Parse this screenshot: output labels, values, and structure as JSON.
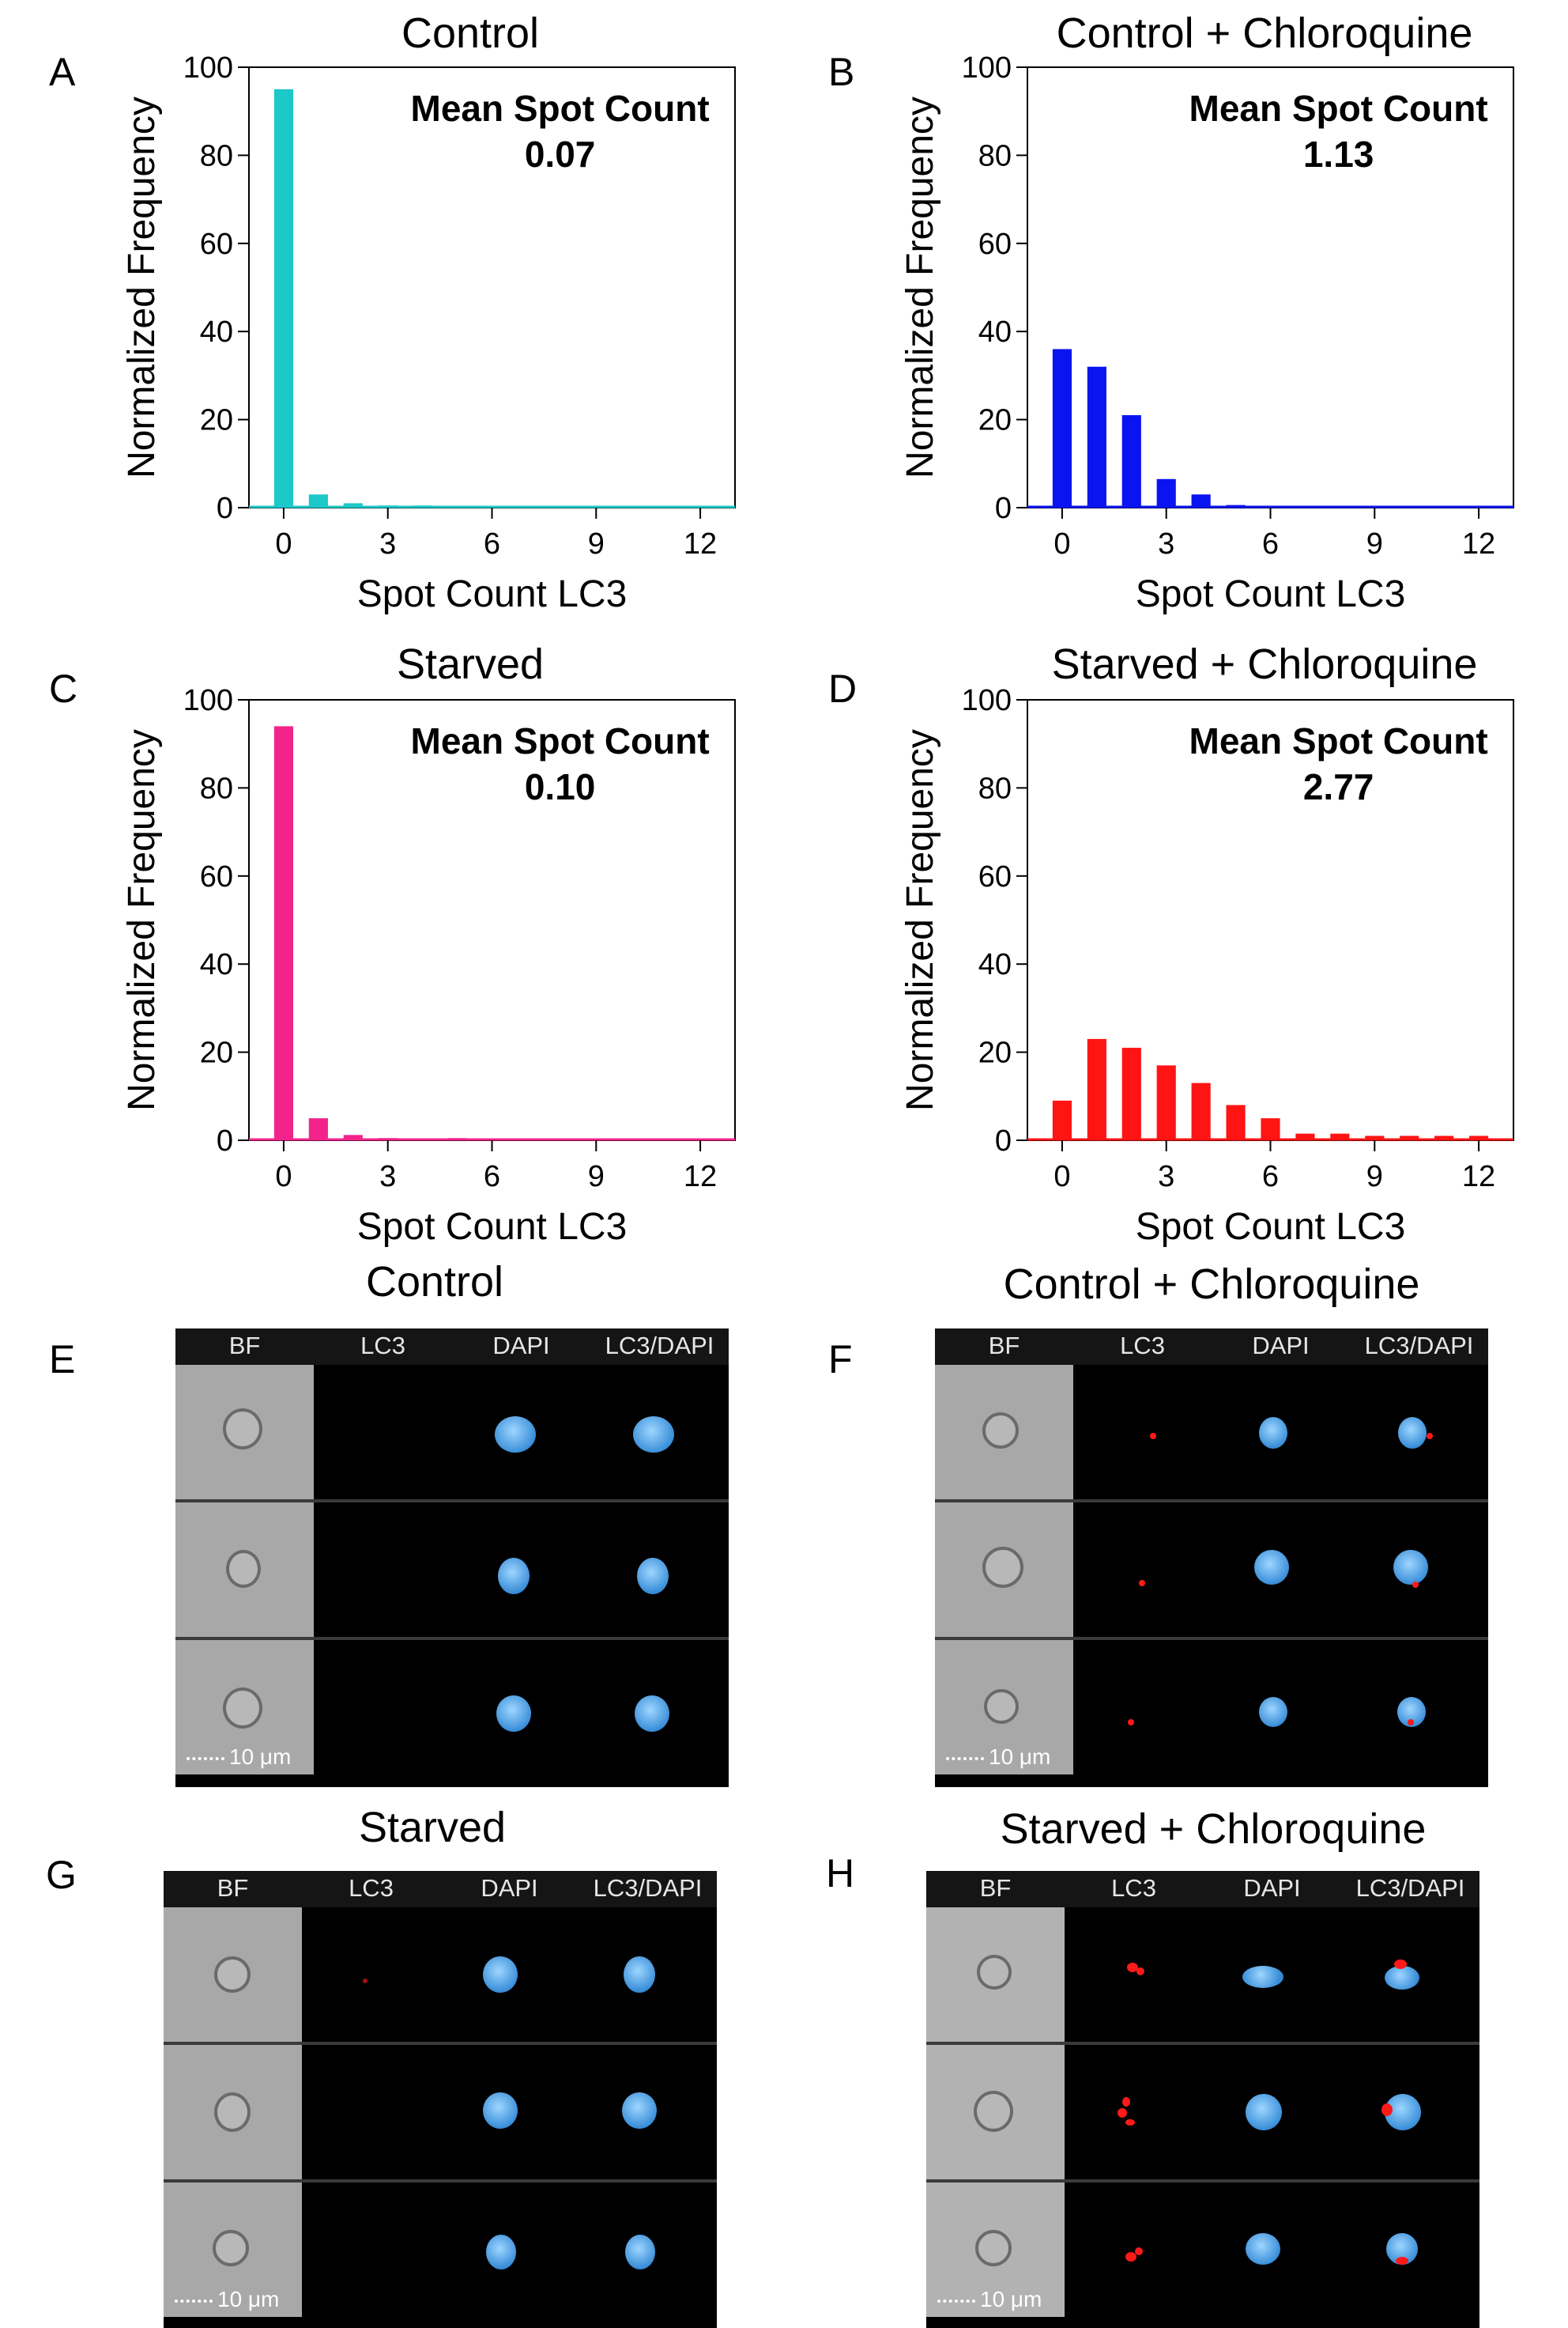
{
  "chart_data": [
    {
      "panel": "A",
      "type": "bar",
      "title": "Control",
      "xlabel": "Spot Count LC3",
      "ylabel": "Normalized Frequency",
      "xticks": [
        "0",
        "3",
        "6",
        "9",
        "12"
      ],
      "yticks": [
        "0",
        "20",
        "40",
        "60",
        "80",
        "100"
      ],
      "ylim": [
        0,
        100
      ],
      "xlim": [
        -1,
        13
      ],
      "x": [
        0,
        1,
        2,
        3,
        4,
        5,
        6,
        7,
        8,
        9,
        10,
        11,
        12
      ],
      "values": [
        95,
        3,
        1,
        0.5,
        0.5,
        0,
        0,
        0,
        0,
        0,
        0,
        0,
        0
      ],
      "color": "#1cc8c8",
      "mean_label": "Mean Spot Count",
      "mean_value": "0.07"
    },
    {
      "panel": "B",
      "type": "bar",
      "title": "Control + Chloroquine",
      "xlabel": "Spot Count LC3",
      "ylabel": "Normalized Frequency",
      "xticks": [
        "0",
        "3",
        "6",
        "9",
        "12"
      ],
      "yticks": [
        "0",
        "20",
        "40",
        "60",
        "80",
        "100"
      ],
      "ylim": [
        0,
        100
      ],
      "xlim": [
        -1,
        13
      ],
      "x": [
        0,
        1,
        2,
        3,
        4,
        5,
        6,
        7,
        8,
        9,
        10,
        11,
        12
      ],
      "values": [
        36,
        32,
        21,
        6.5,
        3,
        0.6,
        0,
        0,
        0,
        0,
        0,
        0,
        0
      ],
      "color": "#0a14f0",
      "mean_label": "Mean Spot Count",
      "mean_value": "1.13"
    },
    {
      "panel": "C",
      "type": "bar",
      "title": "Starved",
      "xlabel": "Spot Count LC3",
      "ylabel": "Normalized Frequency",
      "xticks": [
        "0",
        "3",
        "6",
        "9",
        "12"
      ],
      "yticks": [
        "0",
        "20",
        "40",
        "60",
        "80",
        "100"
      ],
      "ylim": [
        0,
        100
      ],
      "xlim": [
        -1,
        13
      ],
      "x": [
        0,
        1,
        2,
        3,
        4,
        5,
        6,
        7,
        8,
        9,
        10,
        11,
        12
      ],
      "values": [
        94,
        5,
        1.2,
        0.5,
        0,
        0.5,
        0,
        0,
        0,
        0,
        0,
        0,
        0
      ],
      "color": "#f2248c",
      "mean_label": "Mean Spot Count",
      "mean_value": "0.10"
    },
    {
      "panel": "D",
      "type": "bar",
      "title": "Starved + Chloroquine",
      "xlabel": "Spot Count LC3",
      "ylabel": "Normalized Frequency",
      "xticks": [
        "0",
        "3",
        "6",
        "9",
        "12"
      ],
      "yticks": [
        "0",
        "20",
        "40",
        "60",
        "80",
        "100"
      ],
      "ylim": [
        0,
        100
      ],
      "xlim": [
        -1,
        13
      ],
      "x": [
        0,
        1,
        2,
        3,
        4,
        5,
        6,
        7,
        8,
        9,
        10,
        11,
        12
      ],
      "values": [
        9,
        23,
        21,
        17,
        13,
        8,
        5,
        1.5,
        1.5,
        1,
        1,
        1,
        1
      ],
      "color": "#ff1414",
      "mean_label": "Mean Spot Count",
      "mean_value": "2.77"
    }
  ],
  "images": [
    {
      "panel": "E",
      "title": "Control",
      "channels": [
        "BF",
        "LC3",
        "DAPI",
        "LC3/DAPI"
      ],
      "scale_label": "10 μm"
    },
    {
      "panel": "F",
      "title": "Control + Chloroquine",
      "channels": [
        "BF",
        "LC3",
        "DAPI",
        "LC3/DAPI"
      ],
      "scale_label": "10 μm"
    },
    {
      "panel": "G",
      "title": "Starved",
      "channels": [
        "BF",
        "LC3",
        "DAPI",
        "LC3/DAPI"
      ],
      "scale_label": "10 μm"
    },
    {
      "panel": "H",
      "title": "Starved + Chloroquine",
      "channels": [
        "BF",
        "LC3",
        "DAPI",
        "LC3/DAPI"
      ],
      "scale_label": "10 μm"
    }
  ]
}
